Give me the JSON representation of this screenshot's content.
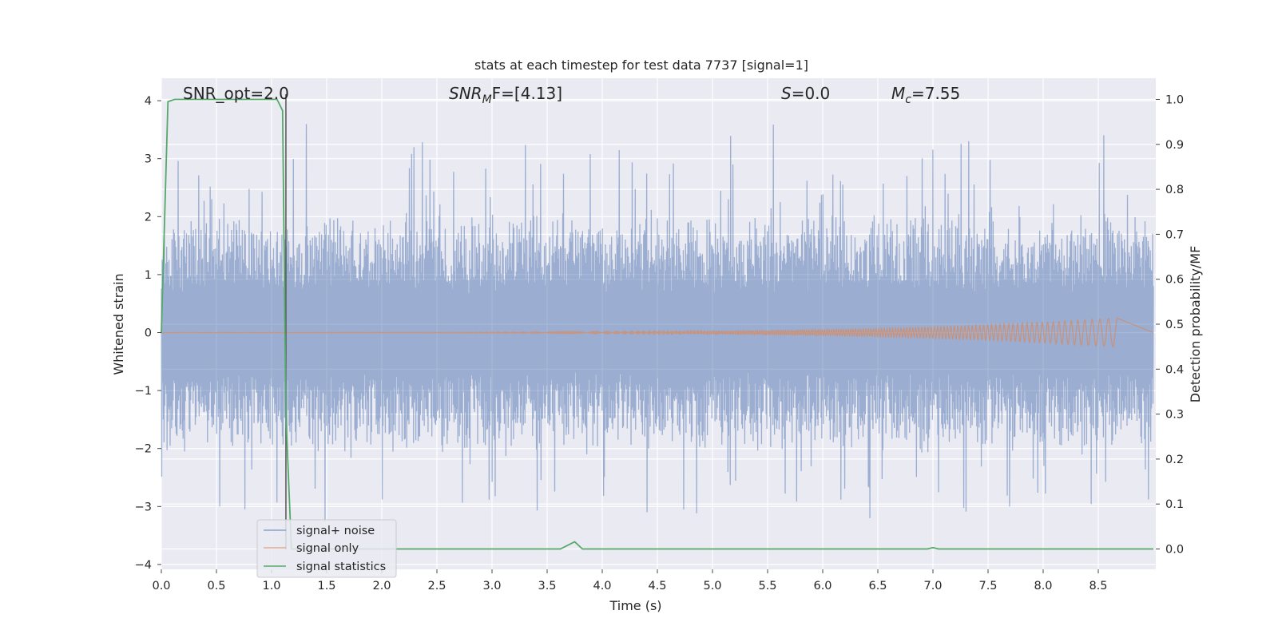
{
  "chart_data": {
    "type": "line",
    "title": "stats at each timestep for test data 7737 [signal=1]",
    "xlabel": "Time (s)",
    "ylabel_left": "Whitened strain",
    "ylabel_right": "Detection probability/MF",
    "xlim": [
      0,
      9.0
    ],
    "ylim_left": [
      -4.15,
      4.35
    ],
    "ylim_right": [
      -0.045,
      1.045
    ],
    "x_ticks": [
      "0.0",
      "0.5",
      "1.0",
      "1.5",
      "2.0",
      "2.5",
      "3.0",
      "3.5",
      "4.0",
      "4.5",
      "5.0",
      "5.5",
      "6.0",
      "6.5",
      "7.0",
      "7.5",
      "8.0",
      "8.5"
    ],
    "y_ticks_left": [
      "4",
      "3",
      "2",
      "1",
      "0",
      "−1",
      "−2",
      "−3",
      "−4"
    ],
    "y_ticks_right": [
      "1.0",
      "0.9",
      "0.8",
      "0.7",
      "0.6",
      "0.5",
      "0.4",
      "0.3",
      "0.2",
      "0.1",
      "0.0"
    ],
    "grid": true,
    "legend_position": "lower-left",
    "series": [
      {
        "name": "signal+ noise",
        "color": "#4c72b0",
        "axis": "left",
        "description_values": {
          "approx_range": [
            -3.7,
            4.0
          ]
        }
      },
      {
        "name": "signal only",
        "color": "#dd8452",
        "axis": "left",
        "chirp": {
          "start_time": 0.0,
          "end_time": 8.68,
          "peak_amplitude": 0.25
        }
      },
      {
        "name": "signal statistics",
        "color": "#55a868",
        "axis": "right",
        "points": [
          [
            0.0,
            0.48
          ],
          [
            0.06,
            0.995
          ],
          [
            0.12,
            1.0
          ],
          [
            1.05,
            1.0
          ],
          [
            1.1,
            0.975
          ],
          [
            1.13,
            0.3
          ],
          [
            1.18,
            0.0
          ],
          [
            3.62,
            0.0
          ],
          [
            3.75,
            0.016
          ],
          [
            3.82,
            0.0
          ],
          [
            6.95,
            0.0
          ],
          [
            7.0,
            0.003
          ],
          [
            7.05,
            0.0
          ],
          [
            9.0,
            0.0
          ]
        ]
      }
    ],
    "annotations": [
      {
        "id": "snr_opt",
        "text": "SNR_opt=2.0"
      },
      {
        "id": "snr_mf",
        "text_main": "SNR",
        "text_sub": "M",
        "text_rest": "F=[4.13]"
      },
      {
        "id": "s",
        "text_main": "S",
        "text_rest": "=0.0"
      },
      {
        "id": "mc",
        "text_main": "M",
        "text_sub": "c",
        "text_rest": "=7.55"
      }
    ],
    "vertical_line": {
      "x": 1.13,
      "color": "#555555"
    }
  },
  "colors": {
    "plot_background": "#eaeaf2",
    "grid": "#ffffff"
  }
}
